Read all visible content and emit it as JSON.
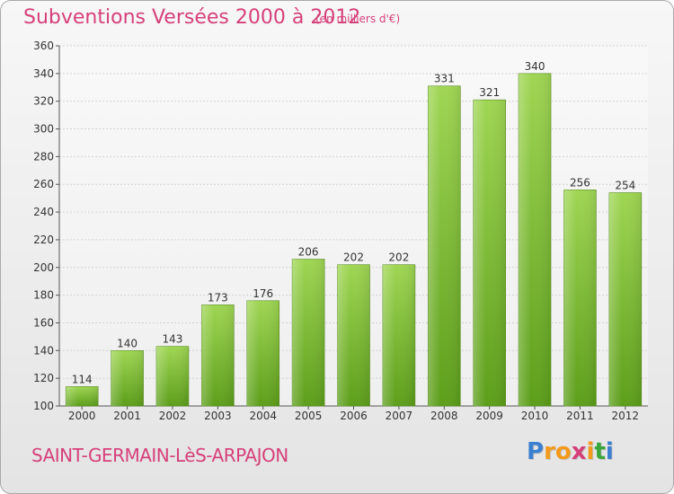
{
  "title": "Subventions Versées 2000 à 2012",
  "subtitle": "(en milliers d'€)",
  "footer": {
    "city": "SAINT-GERMAIN-LèS-ARPAJON"
  },
  "logo": {
    "text": "Proxiti",
    "letters": [
      "P",
      "r",
      "o",
      "x",
      "i",
      "t",
      "i"
    ],
    "colors": [
      "#3a7fd0",
      "#f39a1c",
      "#f39a1c",
      "#d6407a",
      "#f39a1c",
      "#3aa63a",
      "#3a7fd0"
    ]
  },
  "colors": {
    "accent": "#d6407a",
    "bar_top": "#9fd653",
    "bar_bottom": "#5c9e1a"
  },
  "chart_data": {
    "type": "bar",
    "title": "Subventions Versées 2000 à 2012",
    "subtitle": "(en milliers d'€)",
    "categories": [
      "2000",
      "2001",
      "2002",
      "2003",
      "2004",
      "2005",
      "2006",
      "2007",
      "2008",
      "2009",
      "2010",
      "2011",
      "2012"
    ],
    "values": [
      114,
      140,
      143,
      173,
      176,
      206,
      202,
      202,
      331,
      321,
      340,
      256,
      254
    ],
    "ylim": [
      100,
      360
    ],
    "yticks": [
      100,
      120,
      140,
      160,
      180,
      200,
      220,
      240,
      260,
      280,
      300,
      320,
      340,
      360
    ],
    "grid": true,
    "data_labels": true
  }
}
